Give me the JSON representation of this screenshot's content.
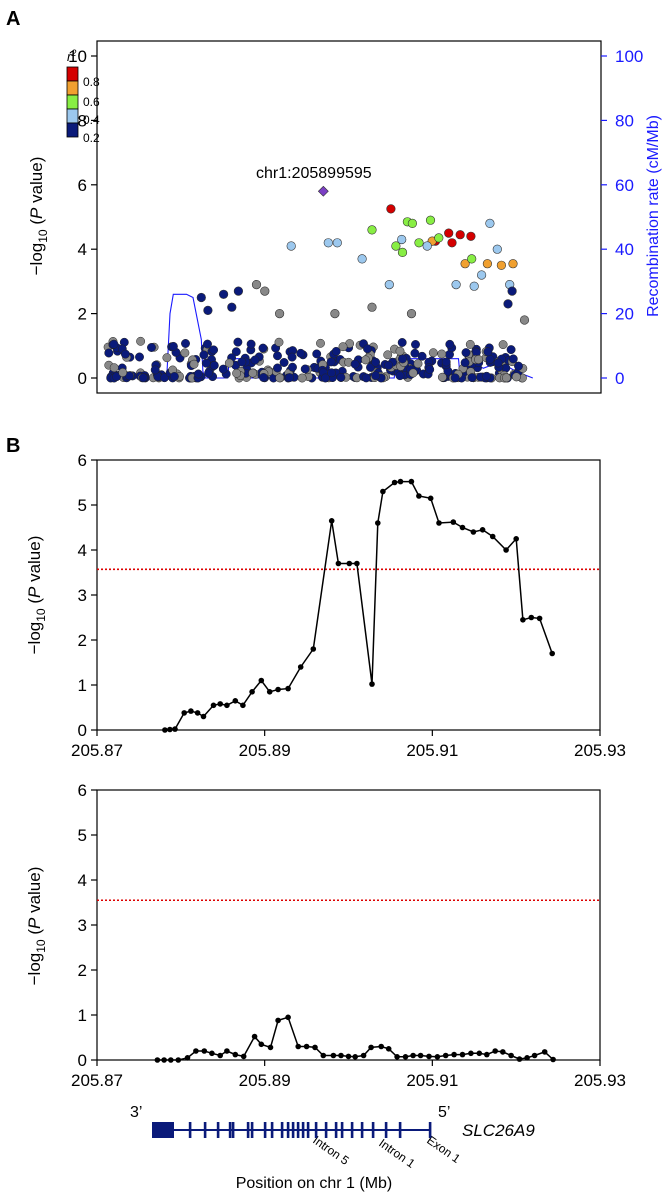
{
  "panel_a": {
    "label": "A",
    "y_label_prefix": "−log",
    "y_label_sub": "10",
    "y_label_suffix": " (P value)",
    "y_label_p": "P",
    "right_label": "Recombination rate (cM/Mb)",
    "snp_label": "chr1:205899595",
    "legend_title": "r",
    "legend_title_sup": "2",
    "legend_ticks": [
      "0.8",
      "0.6",
      "0.4",
      "0.2"
    ],
    "legend_colors": [
      "#d40000",
      "#f0a030",
      "#88ee44",
      "#9cc8ee",
      "#0a1a7a"
    ],
    "y_ticks": [
      "0",
      "2",
      "4",
      "6",
      "8",
      "10"
    ],
    "right_ticks": [
      "0",
      "20",
      "40",
      "60",
      "80",
      "100"
    ],
    "right_axis_color": "#1a1aff"
  },
  "panel_b": {
    "label": "B",
    "threshold_color": "#dd0000",
    "x_label": "Position on chr 1 (Mb)"
  },
  "gene": {
    "name": "SLC26A9",
    "left_end": "3’",
    "right_end": "5’",
    "labels": [
      "Intron 5",
      "Intron 1",
      "Exon 1"
    ],
    "color": "#0a1a7a"
  },
  "chart_data": [
    {
      "type": "scatter",
      "title": "",
      "ylabel": "−log10 (P value)",
      "ylabel_right": "Recombination rate (cM/Mb)",
      "ylim": [
        0,
        10.3
      ],
      "ylim_right": [
        0,
        103
      ],
      "yticks": [
        0,
        2,
        4,
        6,
        8,
        10
      ],
      "yticks_right": [
        0,
        20,
        40,
        60,
        80,
        100
      ],
      "xlim": [
        205.873,
        205.926
      ],
      "grid": false,
      "lead_snp": {
        "name": "chr1:205899595",
        "x": 205.8996,
        "y": 5.8
      },
      "series": [
        {
          "name": "0.8",
          "color": "#d40000",
          "x": [
            205.9078,
            205.9152,
            205.9162,
            205.9175,
            205.9132,
            205.9148
          ],
          "y": [
            5.25,
            4.2,
            4.45,
            4.4,
            4.25,
            4.5
          ]
        },
        {
          "name": "0.6",
          "color": "#f0a030",
          "x": [
            205.9128,
            205.9168,
            205.9195,
            205.9212,
            205.9226
          ],
          "y": [
            4.25,
            3.55,
            3.55,
            3.5,
            3.55
          ]
        },
        {
          "name": "0.4",
          "color": "#88ee44",
          "x": [
            205.9055,
            205.9098,
            205.9112,
            205.9104,
            205.9126,
            205.9136,
            205.9084,
            205.9092,
            205.9176
          ],
          "y": [
            4.6,
            4.85,
            4.2,
            4.8,
            4.9,
            4.35,
            4.1,
            3.9,
            3.7
          ]
        },
        {
          "name": "0.2",
          "color": "#9cc8ee",
          "x": [
            205.8957,
            205.9013,
            205.9002,
            205.9043,
            205.9076,
            205.9091,
            205.9122,
            205.9188,
            205.9198,
            205.9207,
            205.9222,
            205.9157,
            205.9179
          ],
          "y": [
            4.1,
            4.2,
            4.2,
            3.7,
            2.9,
            4.3,
            4.1,
            3.2,
            4.8,
            4.0,
            2.9,
            2.9,
            2.85
          ]
        },
        {
          "name": "",
          "color": "#0a1a7a",
          "x": [
            205.8875,
            205.8885,
            205.8893,
            205.9225,
            205.8848,
            205.8856,
            205.922
          ],
          "y": [
            2.6,
            2.2,
            2.7,
            2.7,
            2.5,
            2.1,
            2.3
          ]
        },
        {
          "name": "",
          "color": "#888888",
          "x": [
            205.8915,
            205.8925,
            205.8943,
            205.901,
            205.9055,
            205.924,
            205.9103
          ],
          "y": [
            2.9,
            2.7,
            2.0,
            2.0,
            2.2,
            1.8,
            2.0
          ]
        }
      ],
      "recombination": {
        "color": "#1a1aff",
        "x": [
          205.874,
          205.8806,
          205.881,
          205.8814,
          205.8822,
          205.883,
          205.8838,
          205.8848,
          205.885,
          205.8853,
          205.886,
          205.888,
          205.8882,
          205.89,
          205.8903,
          205.8906,
          205.8975,
          205.904,
          205.9082,
          205.9085,
          205.916,
          205.9162,
          205.9175,
          205.919,
          205.921,
          205.923,
          205.925
        ],
        "y": [
          0,
          0,
          20,
          26,
          26,
          26,
          25,
          12,
          2,
          0,
          0,
          0,
          6,
          6,
          2,
          0,
          0,
          0,
          0,
          6,
          6,
          0,
          5,
          3,
          5,
          2,
          0
        ]
      }
    },
    {
      "type": "line",
      "title": "",
      "ylabel": "−log10 (P value)",
      "xlabel": "",
      "xlim": [
        205.87,
        205.93
      ],
      "ylim": [
        0,
        6
      ],
      "xticks": [
        205.87,
        205.89,
        205.91,
        205.93
      ],
      "yticks": [
        0,
        1,
        2,
        3,
        4,
        5,
        6
      ],
      "threshold": 3.57,
      "x": [
        205.8781,
        205.8787,
        205.8793,
        205.8804,
        205.8812,
        205.882,
        205.8827,
        205.8839,
        205.8847,
        205.8855,
        205.8865,
        205.8874,
        205.8885,
        205.8896,
        205.8906,
        205.8916,
        205.8928,
        205.8943,
        205.8958,
        205.898,
        205.8988,
        205.9001,
        205.901,
        205.9028,
        205.9035,
        205.9041,
        205.9055,
        205.9062,
        205.9075,
        205.9084,
        205.9098,
        205.9108,
        205.9125,
        205.9136,
        205.9149,
        205.916,
        205.9172,
        205.9188,
        205.92,
        205.9208,
        205.9218,
        205.9228,
        205.9243
      ],
      "values": [
        0.0,
        0.01,
        0.02,
        0.38,
        0.42,
        0.38,
        0.3,
        0.55,
        0.58,
        0.55,
        0.65,
        0.55,
        0.85,
        1.1,
        0.85,
        0.9,
        0.92,
        1.4,
        1.8,
        4.65,
        3.7,
        3.7,
        3.7,
        1.02,
        4.6,
        5.3,
        5.5,
        5.52,
        5.52,
        5.2,
        5.15,
        4.6,
        4.62,
        4.5,
        4.4,
        4.45,
        4.3,
        4.0,
        4.25,
        2.45,
        2.5,
        2.48,
        1.7
      ]
    },
    {
      "type": "line",
      "title": "",
      "ylabel": "−log10 (P value)",
      "xlabel": "Position on chr 1 (Mb)",
      "xlim": [
        205.87,
        205.93
      ],
      "ylim": [
        0,
        6
      ],
      "xticks": [
        205.87,
        205.89,
        205.91,
        205.93
      ],
      "yticks": [
        0,
        1,
        2,
        3,
        4,
        5,
        6
      ],
      "threshold": 3.55,
      "x": [
        205.8772,
        205.878,
        205.8788,
        205.8797,
        205.8808,
        205.8818,
        205.8828,
        205.8837,
        205.8847,
        205.8855,
        205.8865,
        205.8875,
        205.8888,
        205.8896,
        205.8907,
        205.8916,
        205.8928,
        205.894,
        205.895,
        205.896,
        205.897,
        205.8982,
        205.8991,
        205.9,
        205.9008,
        205.9018,
        205.9027,
        205.9039,
        205.9048,
        205.9058,
        205.9068,
        205.9077,
        205.9086,
        205.9096,
        205.9106,
        205.9116,
        205.9126,
        205.9136,
        205.9146,
        205.9156,
        205.9165,
        205.9175,
        205.9184,
        205.9194,
        205.9204,
        205.9213,
        205.9222,
        205.9234,
        205.9244
      ],
      "values": [
        0.0,
        0.0,
        0.0,
        0.0,
        0.05,
        0.2,
        0.2,
        0.15,
        0.1,
        0.2,
        0.12,
        0.08,
        0.52,
        0.35,
        0.28,
        0.88,
        0.95,
        0.3,
        0.3,
        0.28,
        0.1,
        0.1,
        0.1,
        0.08,
        0.07,
        0.1,
        0.28,
        0.3,
        0.25,
        0.07,
        0.07,
        0.1,
        0.1,
        0.08,
        0.07,
        0.1,
        0.12,
        0.12,
        0.15,
        0.15,
        0.12,
        0.2,
        0.18,
        0.1,
        0.02,
        0.05,
        0.1,
        0.18,
        0.01
      ]
    }
  ]
}
